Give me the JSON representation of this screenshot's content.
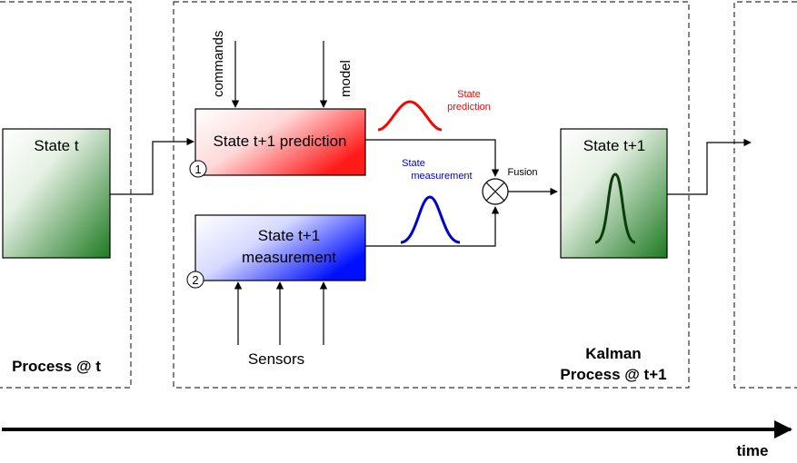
{
  "process_t": {
    "label": "Process @ t",
    "state_box": "State t"
  },
  "kalman_process": {
    "label_line1": "Kalman",
    "label_line2": "Process @ t+1",
    "inputs": {
      "commands": "commands",
      "model": "model"
    },
    "prediction_box": {
      "label": "State t+1 prediction",
      "step": "1"
    },
    "measurement_box": {
      "label_line1": "State t+1",
      "label_line2": "measurement",
      "step": "2"
    },
    "sensors": "Sensors",
    "state_prediction_caption": [
      "State",
      "prediction"
    ],
    "state_measurement_caption": [
      "State",
      "measurement"
    ],
    "fusion": "Fusion",
    "result_box": "State t+1"
  },
  "time_axis": {
    "label": "time"
  },
  "colors": {
    "prediction": "#ff0000",
    "measurement": "#0000cc",
    "state": "#2e7d32",
    "state_curve": "#0b3d0b"
  }
}
